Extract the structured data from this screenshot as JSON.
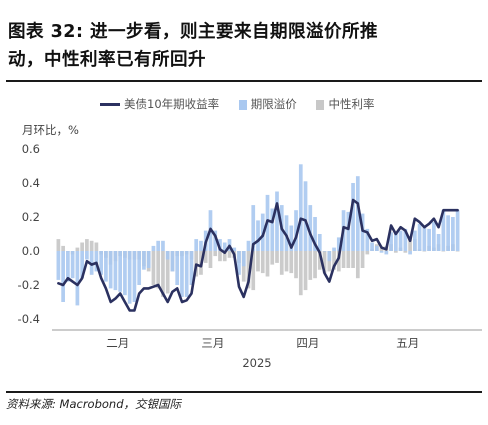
{
  "title": {
    "line1": "图表 32: 进一步看，则主要来自期限溢价所推",
    "line2": "动，中性利率已有所回升"
  },
  "unit_label": "月环比，%",
  "source": "资料来源: Macrobond，交银国际",
  "chart_data": {
    "type": "bar",
    "legend_position": "top",
    "grid": false,
    "ylim": [
      -0.45,
      0.65
    ],
    "y_ticks": [
      "0.6",
      "0.4",
      "0.2",
      "0.0",
      "-0.2",
      "-0.4"
    ],
    "y_tick_values": [
      0.6,
      0.4,
      0.2,
      0.0,
      -0.2,
      -0.4
    ],
    "x_ticks": [
      {
        "label": "二月",
        "index": 12.5
      },
      {
        "label": "三月",
        "index": 32.5
      },
      {
        "label": "四月",
        "index": 52.5
      },
      {
        "label": "五月",
        "index": 73.5
      }
    ],
    "xlabel": "2025",
    "n_points": 85,
    "series": [
      {
        "name": "美债10年期收益率",
        "type": "line",
        "color": "#2b3160",
        "values": [
          -0.19,
          -0.2,
          -0.16,
          -0.18,
          -0.2,
          -0.16,
          -0.06,
          -0.08,
          -0.07,
          -0.16,
          -0.22,
          -0.3,
          -0.28,
          -0.25,
          -0.3,
          -0.35,
          -0.35,
          -0.25,
          -0.22,
          -0.22,
          -0.21,
          -0.2,
          -0.25,
          -0.3,
          -0.24,
          -0.22,
          -0.3,
          -0.29,
          -0.25,
          -0.08,
          -0.09,
          0.05,
          0.13,
          0.09,
          0.01,
          -0.01,
          0.03,
          -0.02,
          -0.21,
          -0.27,
          -0.18,
          0.04,
          0.06,
          0.09,
          0.18,
          0.17,
          0.28,
          0.13,
          0.09,
          0.02,
          0.08,
          0.19,
          0.18,
          0.1,
          0.04,
          -0.01,
          -0.13,
          -0.18,
          -0.09,
          -0.04,
          0.14,
          0.13,
          0.3,
          0.28,
          0.12,
          0.11,
          0.06,
          0.07,
          0.02,
          0.01,
          0.15,
          0.1,
          0.14,
          0.12,
          0.06,
          0.19,
          0.17,
          0.14,
          0.16,
          0.19,
          0.14,
          0.24,
          0.24,
          0.24,
          0.24
        ]
      },
      {
        "name": "期限溢价",
        "type": "bar",
        "color": "#a9c8f0",
        "values": [
          -0.17,
          -0.3,
          -0.18,
          -0.16,
          -0.32,
          -0.16,
          -0.05,
          -0.14,
          -0.12,
          -0.14,
          -0.18,
          -0.22,
          -0.23,
          -0.24,
          -0.26,
          -0.31,
          -0.3,
          -0.2,
          -0.11,
          -0.1,
          0.03,
          0.06,
          0.06,
          -0.05,
          -0.12,
          -0.2,
          -0.27,
          -0.27,
          -0.2,
          0.07,
          0.06,
          0.12,
          0.24,
          0.12,
          0.07,
          0.05,
          0.07,
          0.02,
          -0.14,
          -0.09,
          0.06,
          0.27,
          0.18,
          0.22,
          0.33,
          0.25,
          0.35,
          0.27,
          0.21,
          0.15,
          0.24,
          0.51,
          0.41,
          0.27,
          0.2,
          0.1,
          0.0,
          -0.06,
          0.02,
          0.08,
          0.24,
          0.23,
          0.4,
          0.44,
          0.22,
          0.13,
          0.05,
          0.03,
          -0.01,
          -0.02,
          0.11,
          0.11,
          0.12,
          0.13,
          -0.02,
          0.12,
          0.16,
          0.14,
          0.13,
          0.17,
          0.1,
          0.24,
          0.21,
          0.2,
          0.24
        ]
      },
      {
        "name": "中性利率",
        "type": "bar",
        "color": "#c8c8c8",
        "values": [
          0.07,
          0.03,
          0.0,
          -0.02,
          0.02,
          0.05,
          0.07,
          0.06,
          0.05,
          -0.02,
          -0.04,
          -0.08,
          -0.06,
          -0.03,
          -0.04,
          -0.05,
          -0.05,
          -0.05,
          -0.09,
          -0.12,
          -0.2,
          -0.22,
          -0.27,
          -0.25,
          -0.12,
          -0.03,
          -0.03,
          -0.02,
          -0.05,
          -0.15,
          -0.14,
          -0.07,
          -0.1,
          -0.03,
          -0.06,
          -0.06,
          -0.04,
          -0.04,
          -0.07,
          -0.18,
          -0.22,
          -0.23,
          -0.12,
          -0.13,
          -0.15,
          -0.08,
          -0.07,
          -0.14,
          -0.12,
          -0.13,
          -0.16,
          -0.26,
          -0.23,
          -0.17,
          -0.16,
          -0.11,
          -0.13,
          -0.12,
          -0.11,
          -0.12,
          -0.1,
          -0.1,
          -0.1,
          -0.16,
          -0.1,
          -0.02,
          0.01,
          0.04,
          0.03,
          0.03,
          0.04,
          -0.01,
          0.02,
          -0.01,
          0.08,
          0.07,
          0.01,
          0.0,
          0.03,
          0.02,
          0.04,
          0.0,
          0.03,
          0.04,
          0.0
        ]
      }
    ]
  }
}
